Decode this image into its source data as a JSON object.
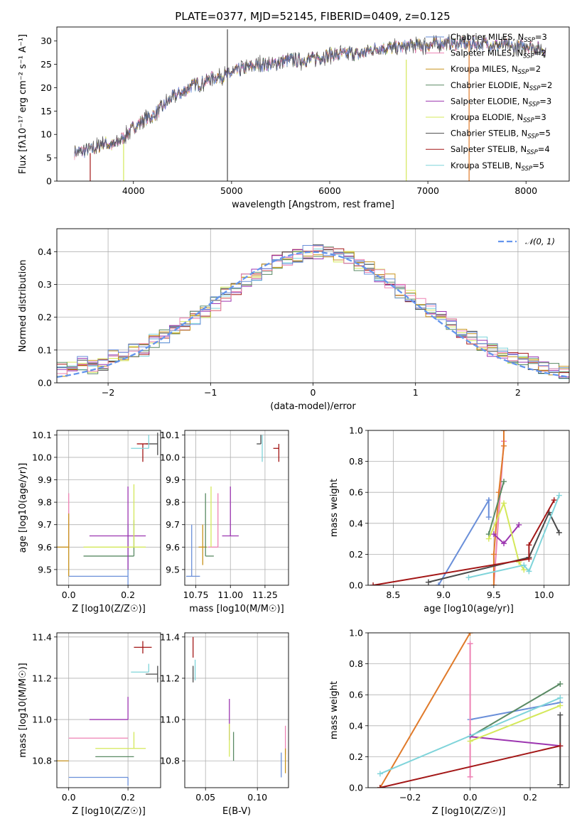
{
  "figure": {
    "title": "PLATE=0377, MJD=52145, FIBERID=0409, z=0.125"
  },
  "chart_data": [
    {
      "id": "spectrum",
      "type": "line",
      "xlabel": "wavelength [Angstrom, rest frame]",
      "ylabel": "Flux [fλ10⁻¹⁷ erg cm⁻² s⁻¹ A⁻¹]",
      "xlim": [
        3220,
        8440
      ],
      "ylim": [
        0,
        33
      ],
      "xticks": [
        4000,
        5000,
        6000,
        7000,
        8000
      ],
      "yticks": [
        0,
        5,
        10,
        15,
        20,
        25,
        30
      ],
      "grid": false,
      "legend_position": "right",
      "continuum": {
        "x": [
          3400,
          3500,
          3600,
          3700,
          3800,
          3900,
          4000,
          4100,
          4200,
          4300,
          4400,
          4500,
          4600,
          4700,
          4800,
          4900,
          5000,
          5100,
          5200,
          5300,
          5400,
          5500,
          5600,
          5700,
          5800,
          5900,
          6000,
          6100,
          6200,
          6300,
          6400,
          6500,
          6600,
          6700,
          6800,
          6900,
          7000,
          7100,
          7200,
          7300,
          7400,
          7500,
          7600,
          7700,
          7800,
          7900,
          8000,
          8100,
          8200
        ],
        "y": [
          6.2,
          6.5,
          7.0,
          8.2,
          7.5,
          9.5,
          11.5,
          13.0,
          14.0,
          16.0,
          18.0,
          19.0,
          20.5,
          21.0,
          22.0,
          22.5,
          23.0,
          24.0,
          24.5,
          25.0,
          25.0,
          25.5,
          26.0,
          25.8,
          26.0,
          26.5,
          27.0,
          27.0,
          27.5,
          27.0,
          28.0,
          28.5,
          28.5,
          28.5,
          29.0,
          29.0,
          29.0,
          29.5,
          29.5,
          29.5,
          29.5,
          29.5,
          29.5,
          29.0,
          29.0,
          28.5,
          29.0,
          28.5,
          28.0
        ]
      },
      "series": [
        {
          "name": "Chabrier MILES, N_SSP=3",
          "color": "#6a8fd9"
        },
        {
          "name": "Salpeter MILES, N_SSP=2",
          "color": "#ee82b4"
        },
        {
          "name": "Kroupa MILES, N_SSP=2",
          "color": "#c8921c"
        },
        {
          "name": "Chabrier ELODIE, N_SSP=2",
          "color": "#5a8a64"
        },
        {
          "name": "Salpeter ELODIE, N_SSP=3",
          "color": "#9c35b0"
        },
        {
          "name": "Kroupa ELODIE, N_SSP=3",
          "color": "#d4e85a"
        },
        {
          "name": "Chabrier STELIB, N_SSP=5",
          "color": "#4a4a4a"
        },
        {
          "name": "Salpeter STELIB, N_SSP=4",
          "color": "#a31717"
        },
        {
          "name": "Kroupa STELIB, N_SSP=5",
          "color": "#7fd4da"
        }
      ]
    },
    {
      "id": "residuals",
      "type": "line",
      "xlabel": "(data-model)/error",
      "ylabel": "Normed distribution",
      "xlim": [
        -2.5,
        2.5
      ],
      "ylim": [
        0,
        0.47
      ],
      "xticks": [
        -2,
        -1,
        0,
        1,
        2
      ],
      "yticks": [
        0.0,
        0.1,
        0.2,
        0.3,
        0.4
      ],
      "grid": true,
      "legend_position": "top-right",
      "normal_curve": {
        "name": "𝒩(0, 1)",
        "color": "#6495ed",
        "mean": 0,
        "sigma": 1
      },
      "histogram": {
        "bin_width": 0.1,
        "heights": [
          0.04,
          0.05,
          0.06,
          0.05,
          0.06,
          0.08,
          0.08,
          0.1,
          0.1,
          0.13,
          0.14,
          0.16,
          0.18,
          0.2,
          0.22,
          0.24,
          0.27,
          0.29,
          0.31,
          0.33,
          0.35,
          0.37,
          0.38,
          0.39,
          0.4,
          0.4,
          0.4,
          0.39,
          0.38,
          0.36,
          0.35,
          0.33,
          0.31,
          0.28,
          0.26,
          0.24,
          0.22,
          0.2,
          0.18,
          0.16,
          0.14,
          0.12,
          0.1,
          0.09,
          0.08,
          0.07,
          0.06,
          0.05,
          0.04,
          0.03
        ]
      }
    },
    {
      "id": "age-vs-Z",
      "type": "scatter",
      "xlabel": "Z [log10(Z/Z☉)]",
      "ylabel": "age  [log10(age/yr)]",
      "xlim": [
        -0.04,
        0.31
      ],
      "ylim": [
        9.43,
        10.12
      ],
      "xticks": [
        0.0,
        0.2
      ],
      "yticks": [
        9.5,
        9.6,
        9.7,
        9.8,
        9.9,
        10.0,
        10.1
      ],
      "grid": true,
      "points": [
        {
          "x": 0.2,
          "y": 9.47,
          "xerr": [
            0.2,
            0.0
          ],
          "yerr": [
            0.05,
            0.23
          ],
          "color": "#6a8fd9"
        },
        {
          "x": 0.0,
          "y": 9.6,
          "xerr": [
            0.0,
            0.0
          ],
          "yerr": [
            0.0,
            0.24
          ],
          "color": "#ee82b4"
        },
        {
          "x": 0.0,
          "y": 9.6,
          "xerr": [
            0.05,
            0.0
          ],
          "yerr": [
            0.13,
            0.15
          ],
          "color": "#c8921c"
        },
        {
          "x": 0.22,
          "y": 9.56,
          "xerr": [
            0.17,
            0.0
          ],
          "yerr": [
            0.0,
            0.16
          ],
          "color": "#5a8a64"
        },
        {
          "x": 0.2,
          "y": 9.65,
          "xerr": [
            0.13,
            0.06
          ],
          "yerr": [
            0.15,
            0.22
          ],
          "color": "#9c35b0"
        },
        {
          "x": 0.22,
          "y": 9.6,
          "xerr": [
            0.17,
            0.04
          ],
          "yerr": [
            0.0,
            0.28
          ],
          "color": "#d4e85a"
        },
        {
          "x": 0.3,
          "y": 10.06,
          "xerr": [
            0.04,
            0.0
          ],
          "yerr": [
            0.05,
            0.05
          ],
          "color": "#4a4a4a"
        },
        {
          "x": 0.25,
          "y": 10.06,
          "xerr": [
            0.02,
            0.02
          ],
          "yerr": [
            0.08,
            0.0
          ],
          "color": "#a31717"
        },
        {
          "x": 0.27,
          "y": 10.04,
          "xerr": [
            0.06,
            0.0
          ],
          "yerr": [
            0.0,
            0.06
          ],
          "color": "#7fd4da"
        }
      ]
    },
    {
      "id": "age-vs-mass",
      "type": "scatter",
      "xlabel": "mass [log10(M/M☉)]",
      "ylabel": "",
      "xlim": [
        10.67,
        11.42
      ],
      "ylim": [
        9.43,
        10.12
      ],
      "xticks": [
        10.75,
        11.0,
        11.25
      ],
      "yticks": [
        9.5,
        9.6,
        9.7,
        9.8,
        9.9,
        10.0,
        10.1
      ],
      "grid": true,
      "points": [
        {
          "x": 10.72,
          "y": 9.47,
          "xerr": [
            0.04,
            0.06
          ],
          "yerr": [
            0.0,
            0.23
          ],
          "color": "#6a8fd9"
        },
        {
          "x": 10.91,
          "y": 9.6,
          "xerr": [
            0.07,
            0.0
          ],
          "yerr": [
            0.0,
            0.24
          ],
          "color": "#ee82b4"
        },
        {
          "x": 10.8,
          "y": 9.6,
          "xerr": [
            0.03,
            0.03
          ],
          "yerr": [
            0.08,
            0.1
          ],
          "color": "#c8921c"
        },
        {
          "x": 10.82,
          "y": 9.56,
          "xerr": [
            0.0,
            0.06
          ],
          "yerr": [
            0.0,
            0.28
          ],
          "color": "#5a8a64"
        },
        {
          "x": 11.0,
          "y": 9.65,
          "xerr": [
            0.06,
            0.06
          ],
          "yerr": [
            0.0,
            0.22
          ],
          "color": "#9c35b0"
        },
        {
          "x": 10.86,
          "y": 9.6,
          "xerr": [
            0.0,
            0.0
          ],
          "yerr": [
            0.0,
            0.27
          ],
          "color": "#d4e85a"
        },
        {
          "x": 11.22,
          "y": 10.06,
          "xerr": [
            0.03,
            0.0
          ],
          "yerr": [
            0.0,
            0.04
          ],
          "color": "#4a4a4a"
        },
        {
          "x": 11.35,
          "y": 10.04,
          "xerr": [
            0.04,
            0.0
          ],
          "yerr": [
            0.06,
            0.02
          ],
          "color": "#a31717"
        },
        {
          "x": 11.23,
          "y": 10.04,
          "xerr": [
            0.0,
            0.0
          ],
          "yerr": [
            0.06,
            0.06
          ],
          "color": "#7fd4da"
        }
      ]
    },
    {
      "id": "massweight-vs-age",
      "type": "line",
      "xlabel": "age  [log10(age/yr)]",
      "ylabel": "mass weight",
      "xlim": [
        8.25,
        10.25
      ],
      "ylim": [
        0.0,
        1.0
      ],
      "xticks": [
        8.5,
        9.0,
        9.5,
        10.0
      ],
      "yticks": [
        0.0,
        0.2,
        0.4,
        0.6,
        0.8,
        1.0
      ],
      "grid": true,
      "series": [
        {
          "color": "#6a8fd9",
          "x": [
            8.95,
            9.45,
            9.45
          ],
          "y": [
            0.0,
            0.55,
            0.44
          ]
        },
        {
          "color": "#ee82b4",
          "x": [
            9.5,
            9.6
          ],
          "y": [
            0.0,
            0.93
          ]
        },
        {
          "color": "#e07a2a",
          "x": [
            9.5,
            9.5,
            9.55,
            9.6,
            9.6
          ],
          "y": [
            0.0,
            0.2,
            0.6,
            0.9,
            1.0
          ]
        },
        {
          "color": "#5a8a64",
          "x": [
            9.45,
            9.6
          ],
          "y": [
            0.33,
            0.67
          ]
        },
        {
          "color": "#9c35b0",
          "x": [
            9.5,
            9.6,
            9.75
          ],
          "y": [
            0.33,
            0.27,
            0.39
          ]
        },
        {
          "color": "#d4e85a",
          "x": [
            9.45,
            9.6,
            9.75,
            9.8
          ],
          "y": [
            0.3,
            0.53,
            0.15,
            0.1
          ]
        },
        {
          "color": "#4a4a4a",
          "x": [
            8.85,
            9.85,
            10.05,
            10.15
          ],
          "y": [
            0.02,
            0.18,
            0.47,
            0.34
          ]
        },
        {
          "color": "#a31717",
          "x": [
            8.3,
            9.85,
            9.85,
            10.1
          ],
          "y": [
            0.0,
            0.17,
            0.26,
            0.55
          ]
        },
        {
          "color": "#7fd4da",
          "x": [
            9.25,
            9.8,
            9.85,
            10.15
          ],
          "y": [
            0.05,
            0.13,
            0.09,
            0.58
          ]
        }
      ]
    },
    {
      "id": "mass-vs-Z",
      "type": "scatter",
      "xlabel": "Z [log10(Z/Z☉)]",
      "ylabel": "mass [log10(M/M☉)]",
      "xlim": [
        -0.04,
        0.31
      ],
      "ylim": [
        10.67,
        11.42
      ],
      "xticks": [
        0.0,
        0.2
      ],
      "yticks": [
        10.8,
        11.0,
        11.2,
        11.4
      ],
      "grid": true,
      "points": [
        {
          "x": 0.2,
          "y": 10.72,
          "xerr": [
            0.2,
            0.0
          ],
          "yerr": [
            0.04,
            0.0
          ],
          "color": "#6a8fd9"
        },
        {
          "x": 0.0,
          "y": 10.91,
          "xerr": [
            0.0,
            0.2
          ],
          "yerr": [
            0.0,
            0.0
          ],
          "color": "#ee82b4"
        },
        {
          "x": 0.0,
          "y": 10.8,
          "xerr": [
            0.05,
            0.0
          ],
          "yerr": [
            0.0,
            0.0
          ],
          "color": "#c8921c"
        },
        {
          "x": 0.22,
          "y": 10.82,
          "xerr": [
            0.13,
            0.0
          ],
          "yerr": [
            0.0,
            0.0
          ],
          "color": "#5a8a64"
        },
        {
          "x": 0.2,
          "y": 11.0,
          "xerr": [
            0.13,
            0.0
          ],
          "yerr": [
            0.0,
            0.11
          ],
          "color": "#9c35b0"
        },
        {
          "x": 0.22,
          "y": 10.86,
          "xerr": [
            0.13,
            0.04
          ],
          "yerr": [
            0.0,
            0.08
          ],
          "color": "#d4e85a"
        },
        {
          "x": 0.3,
          "y": 11.22,
          "xerr": [
            0.04,
            0.0
          ],
          "yerr": [
            0.04,
            0.04
          ],
          "color": "#4a4a4a"
        },
        {
          "x": 0.25,
          "y": 11.35,
          "xerr": [
            0.03,
            0.03
          ],
          "yerr": [
            0.03,
            0.03
          ],
          "color": "#a31717"
        },
        {
          "x": 0.27,
          "y": 11.23,
          "xerr": [
            0.06,
            0.0
          ],
          "yerr": [
            0.0,
            0.04
          ],
          "color": "#7fd4da"
        }
      ]
    },
    {
      "id": "mass-vs-EBV",
      "type": "scatter",
      "xlabel": "E(B-V)",
      "ylabel": "",
      "xlim": [
        0.03,
        0.13
      ],
      "ylim": [
        10.67,
        11.42
      ],
      "xticks": [
        0.05,
        0.1
      ],
      "yticks": [
        10.8,
        11.0,
        11.2,
        11.4
      ],
      "grid": true,
      "points": [
        {
          "x": 0.123,
          "y": 10.78,
          "yerr": [
            0.06,
            0.06
          ],
          "color": "#6a8fd9"
        },
        {
          "x": 0.127,
          "y": 10.9,
          "yerr": [
            0.07,
            0.07
          ],
          "color": "#ee82b4"
        },
        {
          "x": 0.127,
          "y": 10.8,
          "yerr": [
            0.06,
            0.06
          ],
          "color": "#c8921c"
        },
        {
          "x": 0.077,
          "y": 10.87,
          "yerr": [
            0.07,
            0.07
          ],
          "color": "#5a8a64"
        },
        {
          "x": 0.073,
          "y": 11.0,
          "yerr": [
            0.1,
            0.1
          ],
          "color": "#9c35b0"
        },
        {
          "x": 0.073,
          "y": 10.9,
          "yerr": [
            0.08,
            0.08
          ],
          "color": "#d4e85a"
        },
        {
          "x": 0.038,
          "y": 11.22,
          "yerr": [
            0.04,
            0.04
          ],
          "color": "#4a4a4a"
        },
        {
          "x": 0.038,
          "y": 11.35,
          "yerr": [
            0.05,
            0.05
          ],
          "color": "#a31717"
        },
        {
          "x": 0.04,
          "y": 11.24,
          "yerr": [
            0.05,
            0.05
          ],
          "color": "#7fd4da"
        }
      ]
    },
    {
      "id": "massweight-vs-Z",
      "type": "line",
      "xlabel": "Z [log10(Z/Z☉)]",
      "ylabel": "mass weight",
      "xlim": [
        -0.34,
        0.33
      ],
      "ylim": [
        0.0,
        1.0
      ],
      "xticks": [
        -0.2,
        0.0,
        0.2
      ],
      "yticks": [
        0.0,
        0.2,
        0.4,
        0.6,
        0.8,
        1.0
      ],
      "grid": true,
      "series": [
        {
          "color": "#6a8fd9",
          "x": [
            0.0,
            0.3
          ],
          "y": [
            0.44,
            0.55
          ]
        },
        {
          "color": "#ee82b4",
          "x": [
            0.0,
            0.0
          ],
          "y": [
            0.07,
            0.93
          ]
        },
        {
          "color": "#e07a2a",
          "x": [
            -0.3,
            0.0
          ],
          "y": [
            0.0,
            1.0
          ]
        },
        {
          "color": "#5a8a64",
          "x": [
            0.0,
            0.3
          ],
          "y": [
            0.33,
            0.67
          ]
        },
        {
          "color": "#9c35b0",
          "x": [
            0.0,
            0.3
          ],
          "y": [
            0.33,
            0.27
          ]
        },
        {
          "color": "#d4e85a",
          "x": [
            0.0,
            0.3
          ],
          "y": [
            0.3,
            0.53
          ]
        },
        {
          "color": "#4a4a4a",
          "x": [
            0.3,
            0.3
          ],
          "y": [
            0.02,
            0.47
          ]
        },
        {
          "color": "#a31717",
          "x": [
            -0.3,
            0.3
          ],
          "y": [
            0.0,
            0.27
          ]
        },
        {
          "color": "#7fd4da",
          "x": [
            -0.3,
            0.3
          ],
          "y": [
            0.09,
            0.58
          ]
        }
      ]
    }
  ]
}
